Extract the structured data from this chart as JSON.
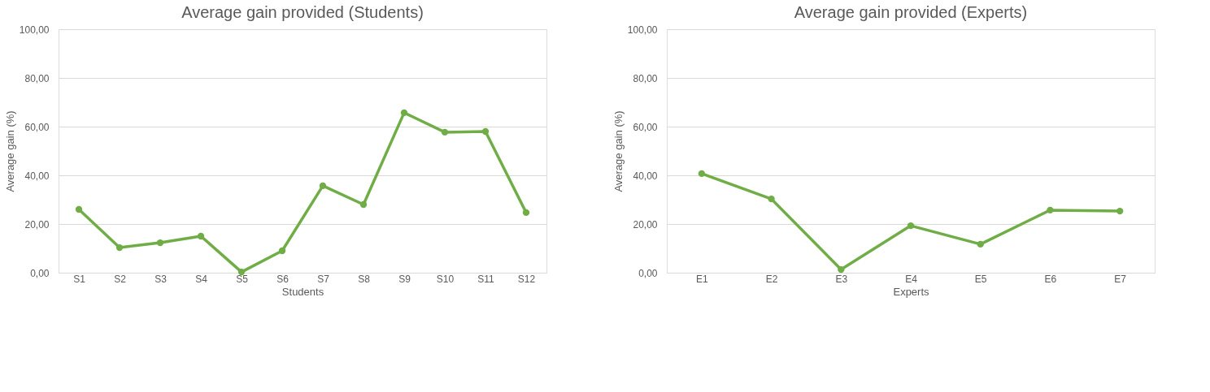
{
  "chart_data": [
    {
      "type": "line",
      "title": "Average gain provided (Students)",
      "xlabel": "Students",
      "ylabel": "Average gain (%)",
      "categories": [
        "S1",
        "S2",
        "S3",
        "S4",
        "S5",
        "S6",
        "S7",
        "S8",
        "S9",
        "S10",
        "S11",
        "S12"
      ],
      "series": [
        {
          "color": "#70ad47",
          "values": [
            26,
            10.3,
            12.3,
            15,
            0.3,
            9,
            35.7,
            28,
            65.7,
            57.7,
            58,
            24.7
          ]
        }
      ],
      "ylim": [
        0,
        100
      ],
      "yticks": [
        {
          "value": 0,
          "label": "0,00"
        },
        {
          "value": 20,
          "label": "20,00"
        },
        {
          "value": 40,
          "label": "40,00"
        },
        {
          "value": 60,
          "label": "60,00"
        },
        {
          "value": 80,
          "label": "80,00"
        },
        {
          "value": 100,
          "label": "100,00"
        }
      ],
      "grid": "y",
      "marker": "circle",
      "line_style": "solid"
    },
    {
      "type": "line",
      "title": "Average gain provided (Experts)",
      "xlabel": "Experts",
      "ylabel": "Average gain (%)",
      "categories": [
        "E1",
        "E2",
        "E3",
        "E4",
        "E5",
        "E6",
        "E7"
      ],
      "series": [
        {
          "color": "#70ad47",
          "values": [
            40.7,
            30.3,
            1.3,
            19.3,
            11.7,
            25.7,
            25.3
          ]
        }
      ],
      "ylim": [
        0,
        100
      ],
      "yticks": [
        {
          "value": 0,
          "label": "0,00"
        },
        {
          "value": 20,
          "label": "20,00"
        },
        {
          "value": 40,
          "label": "40,00"
        },
        {
          "value": 60,
          "label": "60,00"
        },
        {
          "value": 80,
          "label": "80,00"
        },
        {
          "value": 100,
          "label": "100,00"
        }
      ],
      "grid": "y",
      "marker": "circle",
      "line_style": "solid"
    }
  ]
}
